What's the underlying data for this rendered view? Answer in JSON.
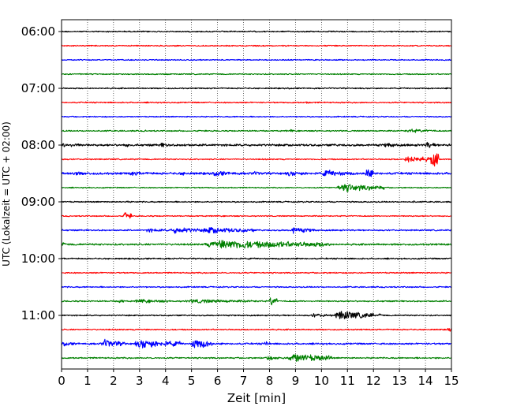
{
  "chart_data": {
    "type": "line",
    "xlabel": "Zeit  [min]",
    "ylabel": "UTC (Lokalzeit = UTC + 02:00)",
    "xlim": [
      0,
      15
    ],
    "x_ticks": [
      "0",
      "1",
      "2",
      "3",
      "4",
      "5",
      "6",
      "7",
      "8",
      "9",
      "10",
      "11",
      "12",
      "13",
      "14",
      "15"
    ],
    "y_tick_labels": [
      "06:00",
      "07:00",
      "08:00",
      "09:00",
      "10:00",
      "11:00"
    ],
    "grid": "vertical dotted lines at each minute",
    "trace_interval_min": 15,
    "first_trace": "06:00",
    "colors_cycle": [
      "#000000",
      "#ff0000",
      "#0000ff",
      "#008000"
    ],
    "traces": [
      {
        "start": "06:00",
        "color": "#000000",
        "noise": 0.9,
        "events": []
      },
      {
        "start": "06:15",
        "color": "#ff0000",
        "noise": 0.8,
        "events": []
      },
      {
        "start": "06:30",
        "color": "#0000ff",
        "noise": 0.8,
        "events": []
      },
      {
        "start": "06:45",
        "color": "#008000",
        "noise": 0.8,
        "events": []
      },
      {
        "start": "07:00",
        "color": "#000000",
        "noise": 0.9,
        "events": []
      },
      {
        "start": "07:15",
        "color": "#ff0000",
        "noise": 0.9,
        "events": [
          {
            "t": 9.4,
            "dur": 0.3,
            "amp": 2
          }
        ]
      },
      {
        "start": "07:30",
        "color": "#0000ff",
        "noise": 0.8,
        "events": []
      },
      {
        "start": "07:45",
        "color": "#008000",
        "noise": 0.9,
        "events": [
          {
            "t": 3.2,
            "dur": 0.1,
            "amp": 2.5
          },
          {
            "t": 8.8,
            "dur": 0.1,
            "amp": 3
          },
          {
            "t": 13.2,
            "dur": 1.2,
            "amp": 3
          }
        ]
      },
      {
        "start": "08:00",
        "color": "#000000",
        "noise": 1.5,
        "events": [
          {
            "t": 0.0,
            "dur": 0.8,
            "amp": 4
          },
          {
            "t": 2.4,
            "dur": 0.4,
            "amp": 3
          },
          {
            "t": 3.8,
            "dur": 0.4,
            "amp": 4
          },
          {
            "t": 4.6,
            "dur": 0.3,
            "amp": 3
          },
          {
            "t": 12.4,
            "dur": 0.6,
            "amp": 4
          },
          {
            "t": 14.0,
            "dur": 0.4,
            "amp": 5
          },
          {
            "t": 14.8,
            "dur": 0.2,
            "amp": 3
          }
        ]
      },
      {
        "start": "08:15",
        "color": "#ff0000",
        "noise": 0.9,
        "events": [
          {
            "t": 13.2,
            "dur": 1.0,
            "amp": 6
          },
          {
            "t": 14.2,
            "dur": 0.3,
            "amp": 16
          }
        ]
      },
      {
        "start": "08:30",
        "color": "#0000ff",
        "noise": 1.6,
        "events": [
          {
            "t": 0.3,
            "dur": 1.2,
            "amp": 3
          },
          {
            "t": 2.5,
            "dur": 1.5,
            "amp": 3
          },
          {
            "t": 4.5,
            "dur": 0.8,
            "amp": 3
          },
          {
            "t": 5.8,
            "dur": 1.0,
            "amp": 4
          },
          {
            "t": 7.2,
            "dur": 1.0,
            "amp": 3
          },
          {
            "t": 8.6,
            "dur": 1.0,
            "amp": 4
          },
          {
            "t": 10.0,
            "dur": 1.2,
            "amp": 5
          },
          {
            "t": 11.7,
            "dur": 0.3,
            "amp": 9
          }
        ]
      },
      {
        "start": "08:45",
        "color": "#008000",
        "noise": 0.8,
        "events": [
          {
            "t": 10.6,
            "dur": 1.8,
            "amp": 6
          }
        ]
      },
      {
        "start": "09:00",
        "color": "#000000",
        "noise": 0.9,
        "events": [
          {
            "t": 2.5,
            "dur": 0.1,
            "amp": 2.5
          },
          {
            "t": 13.5,
            "dur": 0.2,
            "amp": 2
          }
        ]
      },
      {
        "start": "09:15",
        "color": "#ff0000",
        "noise": 0.8,
        "events": [
          {
            "t": 2.4,
            "dur": 0.3,
            "amp": 7
          }
        ]
      },
      {
        "start": "09:30",
        "color": "#0000ff",
        "noise": 1.0,
        "events": [
          {
            "t": 3.2,
            "dur": 1.0,
            "amp": 3
          },
          {
            "t": 4.2,
            "dur": 1.2,
            "amp": 5
          },
          {
            "t": 5.4,
            "dur": 2.0,
            "amp": 5
          },
          {
            "t": 8.8,
            "dur": 0.8,
            "amp": 5
          },
          {
            "t": 9.6,
            "dur": 0.2,
            "amp": 3
          }
        ]
      },
      {
        "start": "09:45",
        "color": "#008000",
        "noise": 1.3,
        "events": [
          {
            "t": 0.0,
            "dur": 0.3,
            "amp": 3
          },
          {
            "t": 5.5,
            "dur": 4.8,
            "amp": 7
          }
        ]
      },
      {
        "start": "10:00",
        "color": "#000000",
        "noise": 1.0,
        "events": []
      },
      {
        "start": "10:15",
        "color": "#ff0000",
        "noise": 0.9,
        "events": []
      },
      {
        "start": "10:30",
        "color": "#0000ff",
        "noise": 0.9,
        "events": []
      },
      {
        "start": "10:45",
        "color": "#008000",
        "noise": 1.0,
        "events": [
          {
            "t": 2.2,
            "dur": 0.2,
            "amp": 4
          },
          {
            "t": 2.8,
            "dur": 1.5,
            "amp": 3
          },
          {
            "t": 4.7,
            "dur": 3.0,
            "amp": 3
          },
          {
            "t": 8.0,
            "dur": 0.3,
            "amp": 8
          }
        ]
      },
      {
        "start": "11:00",
        "color": "#000000",
        "noise": 0.9,
        "events": [
          {
            "t": 9.6,
            "dur": 0.8,
            "amp": 3
          },
          {
            "t": 10.5,
            "dur": 1.5,
            "amp": 7
          },
          {
            "t": 12.2,
            "dur": 0.2,
            "amp": 3
          }
        ]
      },
      {
        "start": "11:15",
        "color": "#ff0000",
        "noise": 0.9,
        "events": [
          {
            "t": 14.85,
            "dur": 0.15,
            "amp": 4
          }
        ]
      },
      {
        "start": "11:30",
        "color": "#0000ff",
        "noise": 1.2,
        "events": [
          {
            "t": 0.0,
            "dur": 0.7,
            "amp": 3
          },
          {
            "t": 1.5,
            "dur": 1.0,
            "amp": 6
          },
          {
            "t": 2.8,
            "dur": 1.8,
            "amp": 7
          },
          {
            "t": 5.0,
            "dur": 0.8,
            "amp": 8
          },
          {
            "t": 7.8,
            "dur": 0.2,
            "amp": 5
          }
        ]
      },
      {
        "start": "11:45",
        "color": "#008000",
        "noise": 1.0,
        "events": [
          {
            "t": 7.8,
            "dur": 0.8,
            "amp": 3
          },
          {
            "t": 8.7,
            "dur": 1.7,
            "amp": 7
          }
        ]
      }
    ]
  }
}
